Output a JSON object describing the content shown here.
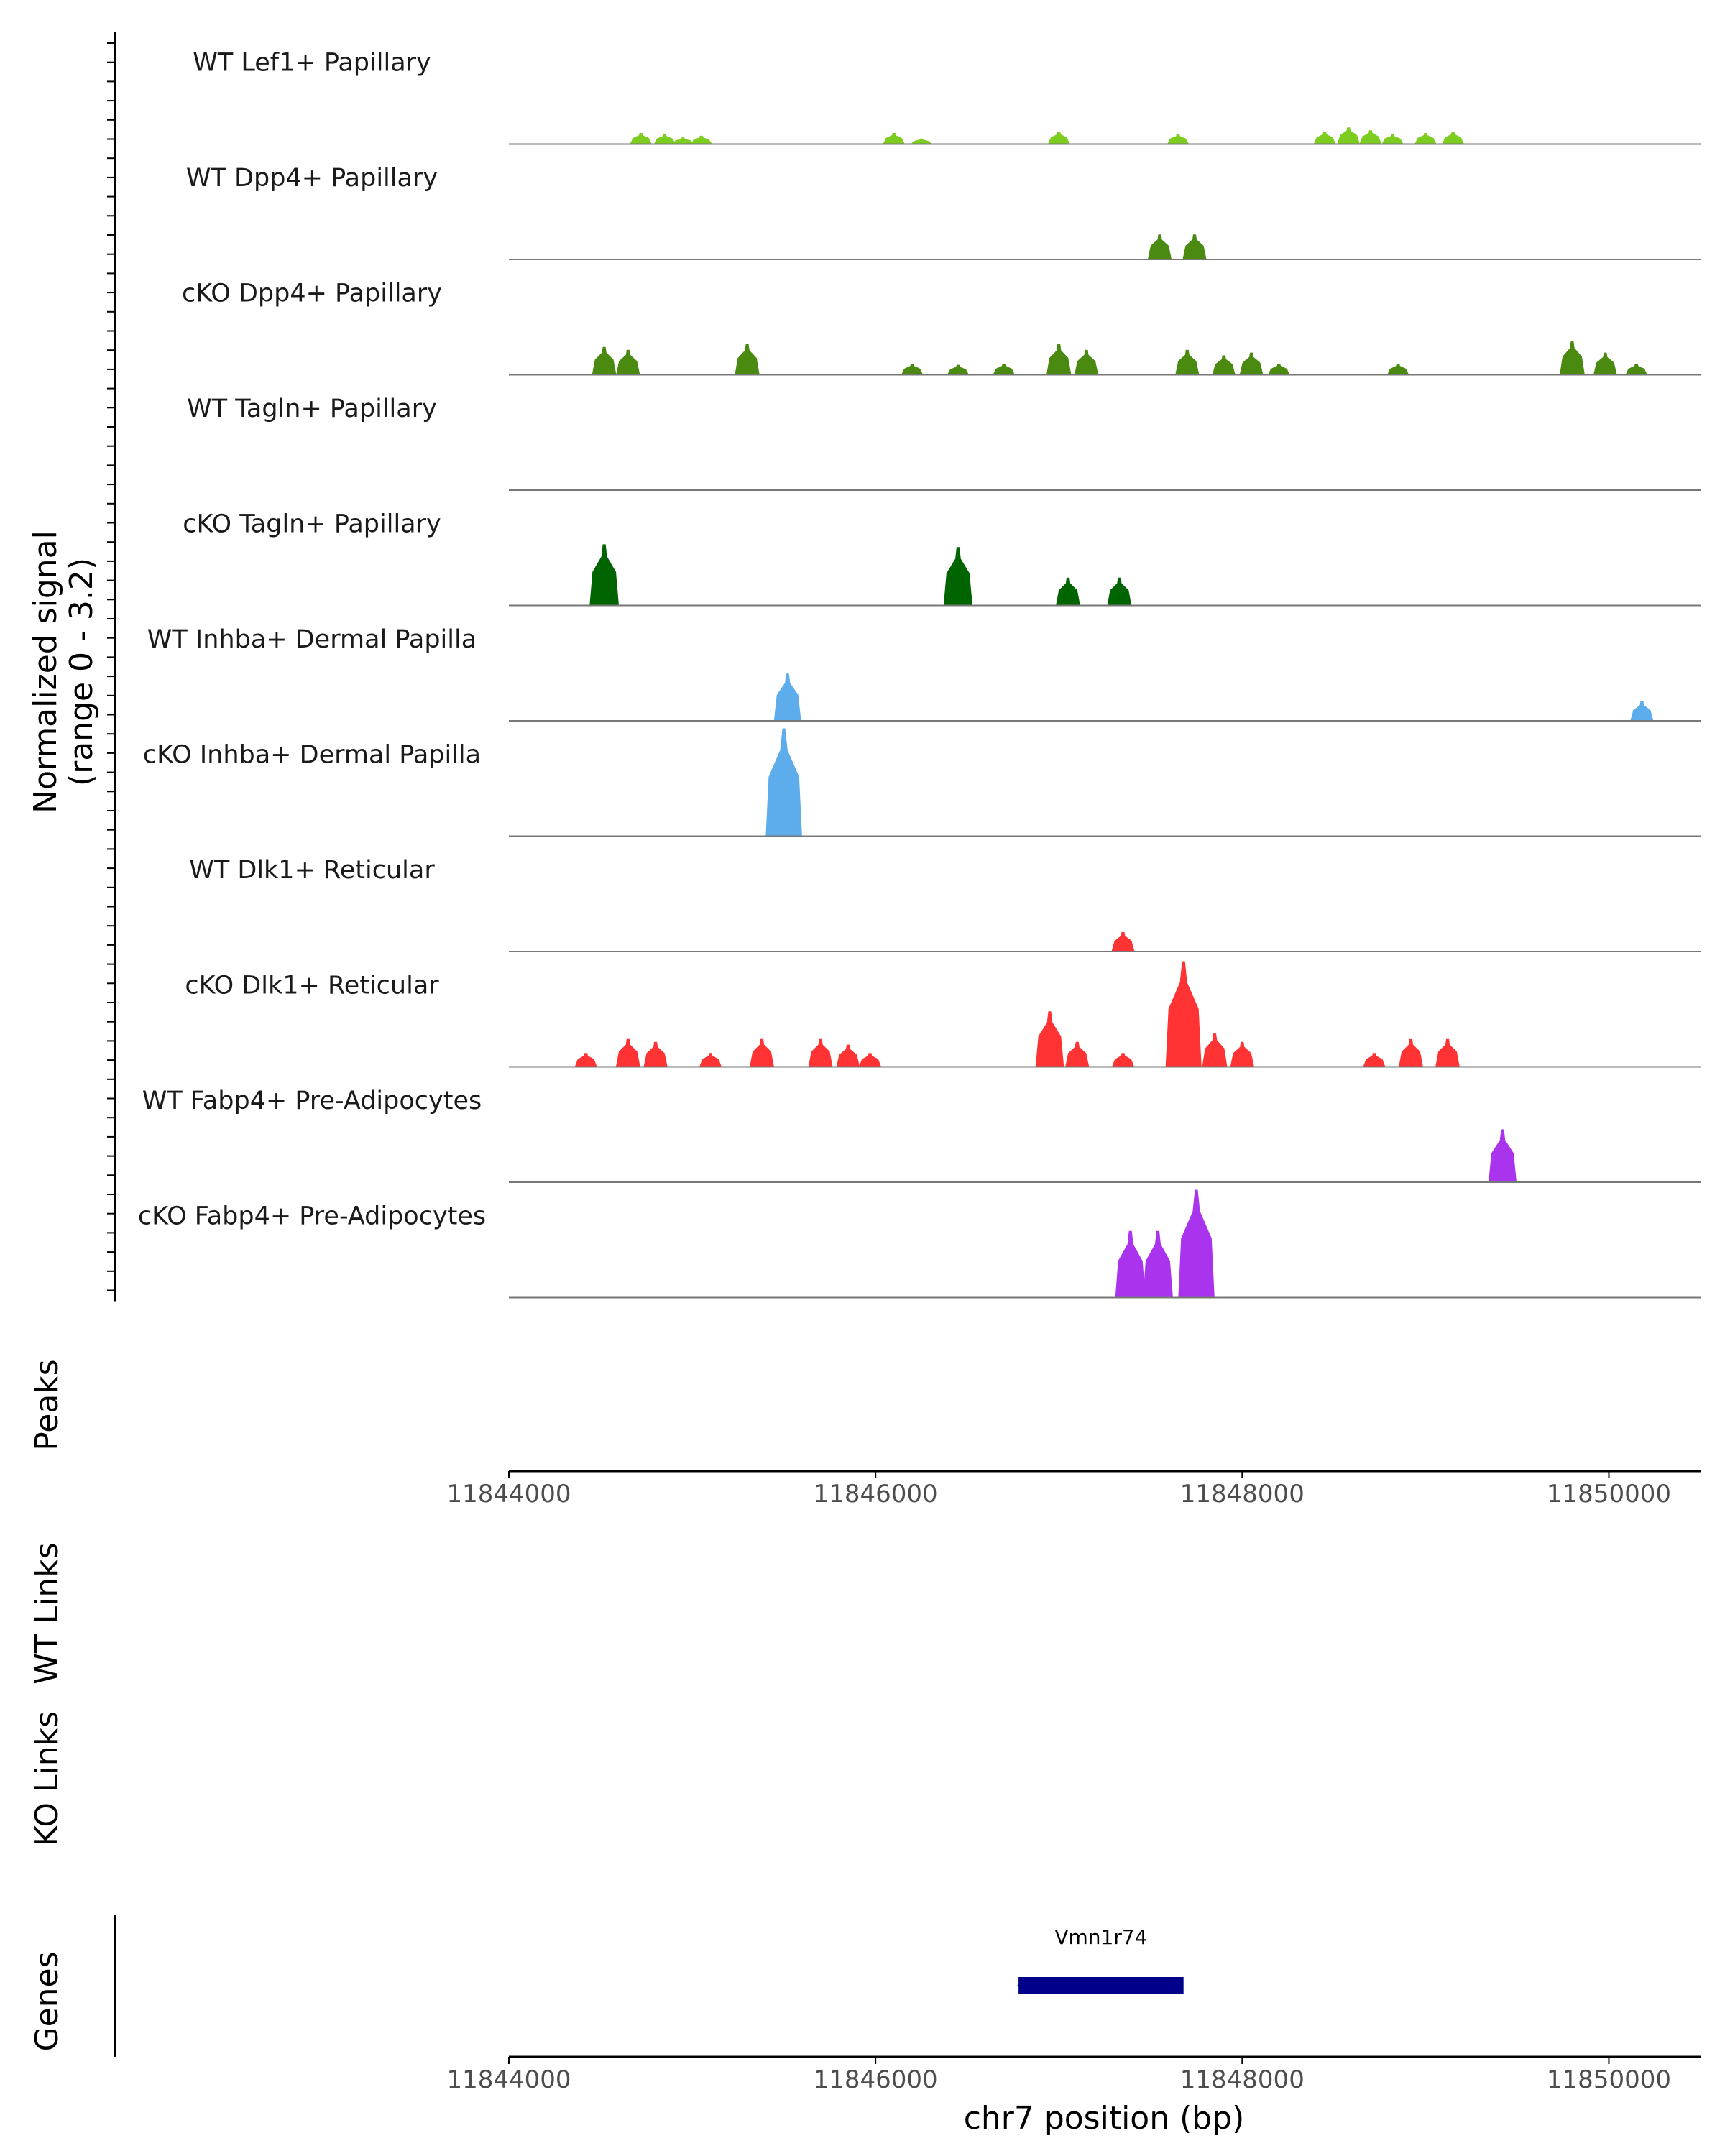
{
  "chart_data": {
    "type": "area",
    "region": {
      "chrom": "chr7",
      "xlim": [
        11844000,
        11850500
      ]
    },
    "signal_axis": {
      "label_line1": "Normalized signal",
      "label_line2": "(range 0 - 3.2)",
      "ylim": [
        0,
        3.2
      ]
    },
    "tracks": [
      {
        "name": "WT Lef1+ Papillary",
        "color": "#7CCD1F",
        "peaks": [
          [
            11844720,
            0.2
          ],
          [
            11844850,
            0.18
          ],
          [
            11844950,
            0.12
          ],
          [
            11845050,
            0.15
          ],
          [
            11846100,
            0.2
          ],
          [
            11846250,
            0.1
          ],
          [
            11847000,
            0.22
          ],
          [
            11847650,
            0.18
          ],
          [
            11848450,
            0.22
          ],
          [
            11848580,
            0.3
          ],
          [
            11848700,
            0.25
          ],
          [
            11848820,
            0.18
          ],
          [
            11849000,
            0.2
          ],
          [
            11849150,
            0.22
          ]
        ]
      },
      {
        "name": "WT Dpp4+ Papillary",
        "color": "#4A8A10",
        "peaks": [
          [
            11847550,
            0.45
          ],
          [
            11847740,
            0.45
          ]
        ]
      },
      {
        "name": "cKO Dpp4+ Papillary",
        "color": "#4A8A10",
        "peaks": [
          [
            11844520,
            0.5
          ],
          [
            11844650,
            0.45
          ],
          [
            11845300,
            0.55
          ],
          [
            11846200,
            0.2
          ],
          [
            11846450,
            0.18
          ],
          [
            11846700,
            0.2
          ],
          [
            11847000,
            0.55
          ],
          [
            11847150,
            0.45
          ],
          [
            11847700,
            0.45
          ],
          [
            11847900,
            0.35
          ],
          [
            11848050,
            0.4
          ],
          [
            11848200,
            0.2
          ],
          [
            11848850,
            0.2
          ],
          [
            11849800,
            0.6
          ],
          [
            11849980,
            0.4
          ],
          [
            11850150,
            0.2
          ]
        ]
      },
      {
        "name": "WT Tagln+ Papillary",
        "color": "#006400",
        "peaks": []
      },
      {
        "name": "cKO Tagln+ Papillary",
        "color": "#006400",
        "peaks": [
          [
            11844520,
            1.1
          ],
          [
            11846450,
            1.05
          ],
          [
            11847050,
            0.5
          ],
          [
            11847330,
            0.5
          ]
        ]
      },
      {
        "name": "WT Inhba+ Dermal Papilla",
        "color": "#5DADEC",
        "peaks": [
          [
            11845520,
            0.85
          ],
          [
            11850180,
            0.35
          ]
        ]
      },
      {
        "name": "cKO Inhba+ Dermal Papilla",
        "color": "#5DADEC",
        "peaks": [
          [
            11845500,
            2.8
          ]
        ]
      },
      {
        "name": "WT Dlk1+ Reticular",
        "color": "#FF3333",
        "peaks": [
          [
            11847350,
            0.35
          ]
        ]
      },
      {
        "name": "cKO Dlk1+ Reticular",
        "color": "#FF3333",
        "peaks": [
          [
            11844420,
            0.25
          ],
          [
            11844650,
            0.5
          ],
          [
            11844800,
            0.45
          ],
          [
            11845100,
            0.25
          ],
          [
            11845380,
            0.5
          ],
          [
            11845700,
            0.5
          ],
          [
            11845850,
            0.4
          ],
          [
            11845970,
            0.25
          ],
          [
            11846950,
            1.0
          ],
          [
            11847100,
            0.45
          ],
          [
            11847350,
            0.25
          ],
          [
            11847680,
            1.9
          ],
          [
            11847850,
            0.6
          ],
          [
            11848000,
            0.45
          ],
          [
            11848720,
            0.25
          ],
          [
            11848920,
            0.5
          ],
          [
            11849120,
            0.5
          ]
        ]
      },
      {
        "name": "WT Fabp4+ Pre-Adipocytes",
        "color": "#AA33EE",
        "peaks": [
          [
            11849420,
            0.95
          ]
        ]
      },
      {
        "name": "cKO Fabp4+ Pre-Adipocytes",
        "color": "#AA33EE",
        "peaks": [
          [
            11847390,
            1.2
          ],
          [
            11847540,
            1.2
          ],
          [
            11847750,
            2.4
          ]
        ]
      }
    ],
    "panels": [
      "Peaks",
      "WT Links",
      "KO Links",
      "Genes"
    ],
    "x_ticks": [
      11844000,
      11846000,
      11848000,
      11850000
    ],
    "x_tick_labels": [
      "11844000",
      "11846000",
      "11848000",
      "11850000"
    ],
    "xlabel": "chr7 position (bp)",
    "genes": [
      {
        "name": "Vmn1r74",
        "start": 11846780,
        "end": 11847680,
        "color": "#00008B",
        "strand": "-"
      }
    ]
  }
}
